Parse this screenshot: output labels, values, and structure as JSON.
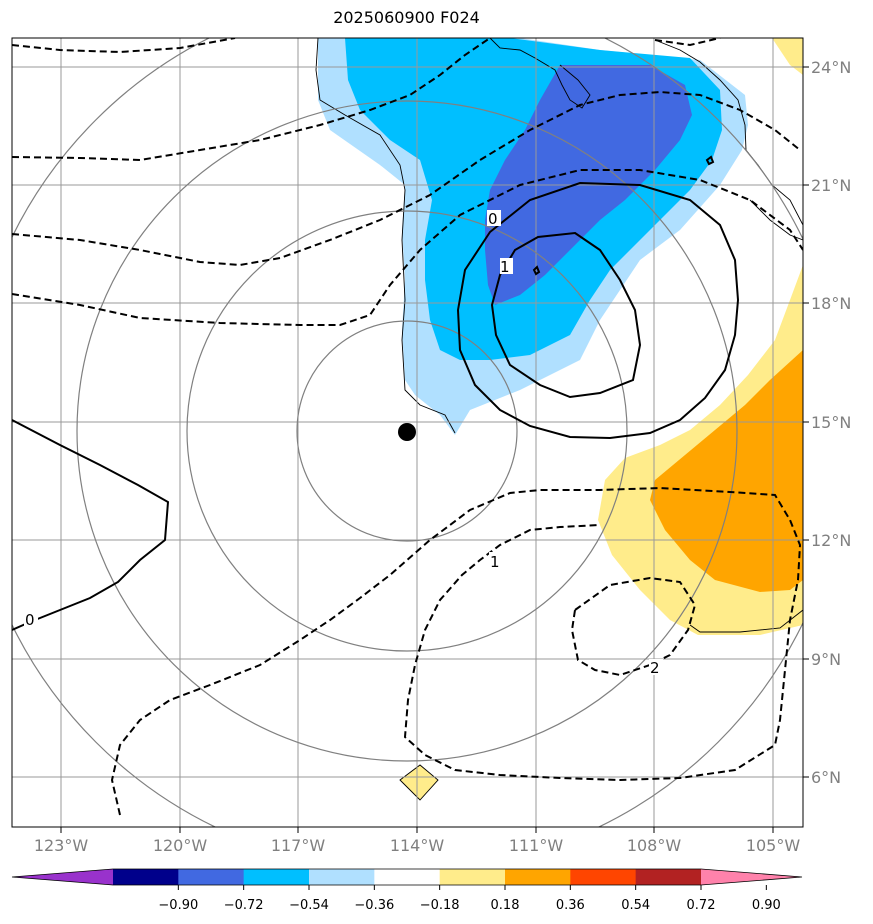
{
  "title": "2025060900 F024",
  "lon_labels": [
    "123°W",
    "120°W",
    "117°W",
    "114°W",
    "111°W",
    "108°W",
    "105°W"
  ],
  "lat_labels": [
    "24°N",
    "21°N",
    "18°N",
    "15°N",
    "12°N",
    "9°N",
    "6°N"
  ],
  "contour_labels": {
    "zero_west": "0",
    "zero_north": "0",
    "one_north": "1",
    "one_south": "1",
    "two_south": "2"
  },
  "colorbar": {
    "ticks": [
      "−0.90",
      "−0.72",
      "−0.54",
      "−0.36",
      "−0.18",
      "0.18",
      "0.36",
      "0.54",
      "0.72",
      "0.90"
    ],
    "colors": [
      "#9932cc",
      "#00008b",
      "#4169e1",
      "#00bfff",
      "#b0e0ff",
      "#ffffff",
      "#ffec8b",
      "#ffa500",
      "#ff4500",
      "#b22222",
      "#ff82ab"
    ]
  },
  "marker": {
    "label": "storm center",
    "lon": -114.3,
    "lat": 14.7
  },
  "colors": {
    "grid": "#999999",
    "coast": "#000000",
    "range_rings": "#808080"
  }
}
